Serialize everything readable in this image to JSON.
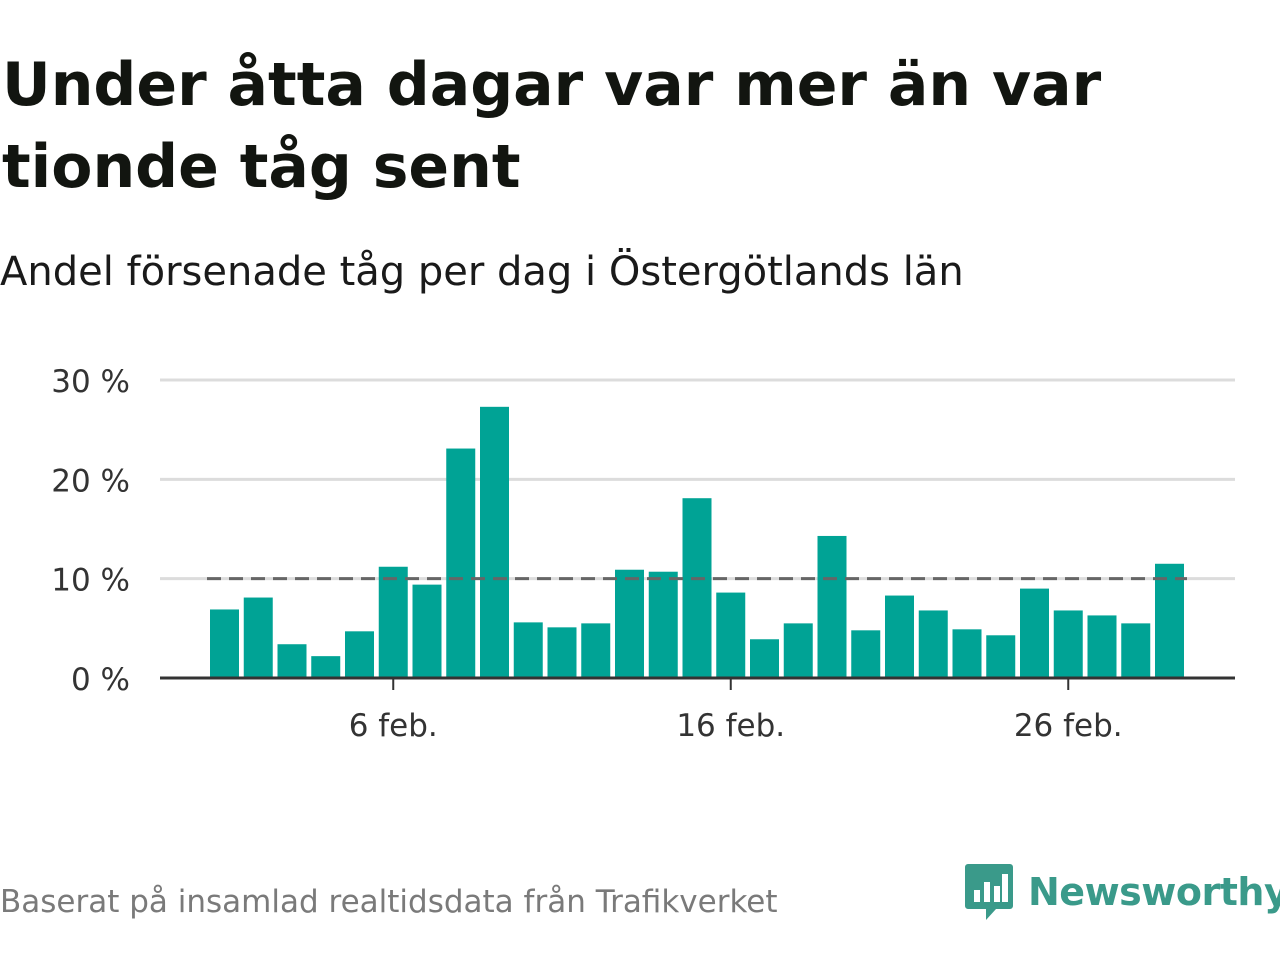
{
  "title": "Under åtta dagar var mer än var tionde tåg sent",
  "subtitle": "Andel försenade tåg per dag i Östergötlands län",
  "source": "Baserat på insamlad realtidsdata från Trafikverket",
  "brand": {
    "name": "Newsworthy",
    "icon": "newsworthy-logo-icon"
  },
  "colors": {
    "bar": "#00a395",
    "reference_line": "#666666",
    "grid": "#dcdcdc",
    "axis": "#333333",
    "brand": "#3a9a8a"
  },
  "chart_data": {
    "type": "bar",
    "title": "Under åtta dagar var mer än var tionde tåg sent",
    "subtitle": "Andel försenade tåg per dag i Östergötlands län",
    "x": [
      "1 feb.",
      "2 feb.",
      "3 feb.",
      "4 feb.",
      "5 feb.",
      "6 feb.",
      "7 feb.",
      "8 feb.",
      "9 feb.",
      "10 feb.",
      "11 feb.",
      "12 feb.",
      "13 feb.",
      "14 feb.",
      "15 feb.",
      "16 feb.",
      "17 feb.",
      "18 feb.",
      "19 feb.",
      "20 feb.",
      "21 feb.",
      "22 feb.",
      "23 feb.",
      "24 feb.",
      "25 feb.",
      "26 feb.",
      "27 feb.",
      "28 feb.",
      "29 feb."
    ],
    "values": [
      6.9,
      8.1,
      3.4,
      2.2,
      4.7,
      11.2,
      9.4,
      23.1,
      27.3,
      5.6,
      5.1,
      5.5,
      10.9,
      10.7,
      18.1,
      8.6,
      3.9,
      5.5,
      14.3,
      4.8,
      8.3,
      6.8,
      4.9,
      4.3,
      9.0,
      6.8,
      6.3,
      5.5,
      11.5
    ],
    "xticks": [
      "6 feb.",
      "16 feb.",
      "26 feb."
    ],
    "yticks": [
      "0 %",
      "10 %",
      "20 %",
      "30 %"
    ],
    "ylim": [
      0,
      30
    ],
    "reference_line": 10,
    "grid": true,
    "legend": "none"
  }
}
